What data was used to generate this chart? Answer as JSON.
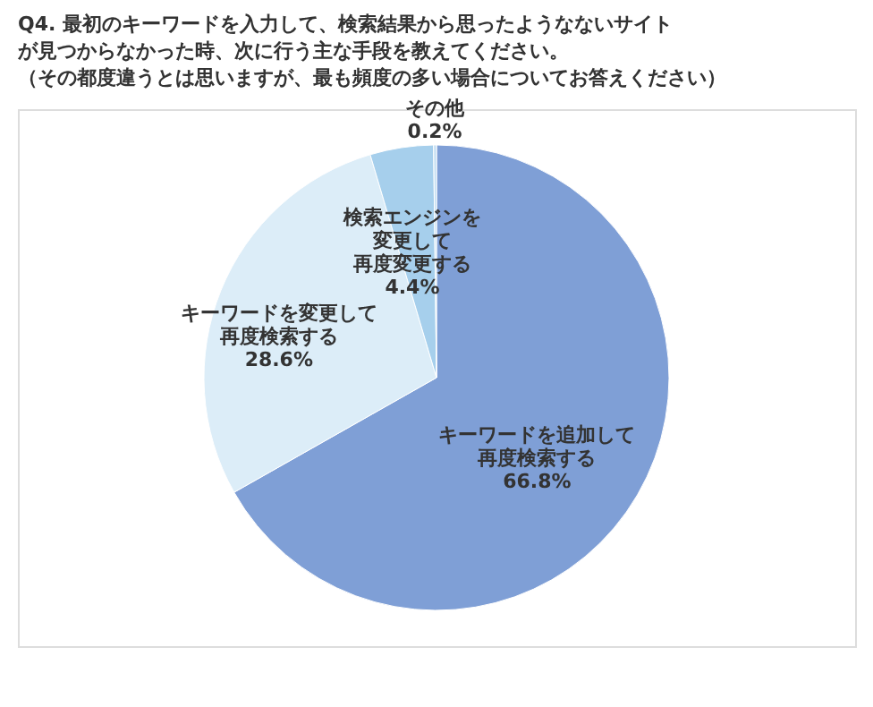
{
  "chart_data": {
    "type": "pie",
    "title": [
      "Q4. 最初のキーワードを入力して、検索結果から思ったようなないサイト",
      "が見つからなかった時、次に行う主な手段を教えてください。",
      "（その都度違うとは思いますが、最も頻度の多い場合についてお答えください）"
    ],
    "categories": [
      "キーワードを追加して再度検索する",
      "キーワードを変更して再度検索する",
      "検索エンジンを変更して再度変更する",
      "その他"
    ],
    "values": [
      66.8,
      28.6,
      4.4,
      0.2
    ],
    "value_labels": [
      "66.8%",
      "28.6%",
      "4.4%",
      "0.2%"
    ],
    "colors": [
      "#7f9fd6",
      "#dcedf8",
      "#a6cfec",
      "#c3def2"
    ],
    "legend": false
  }
}
